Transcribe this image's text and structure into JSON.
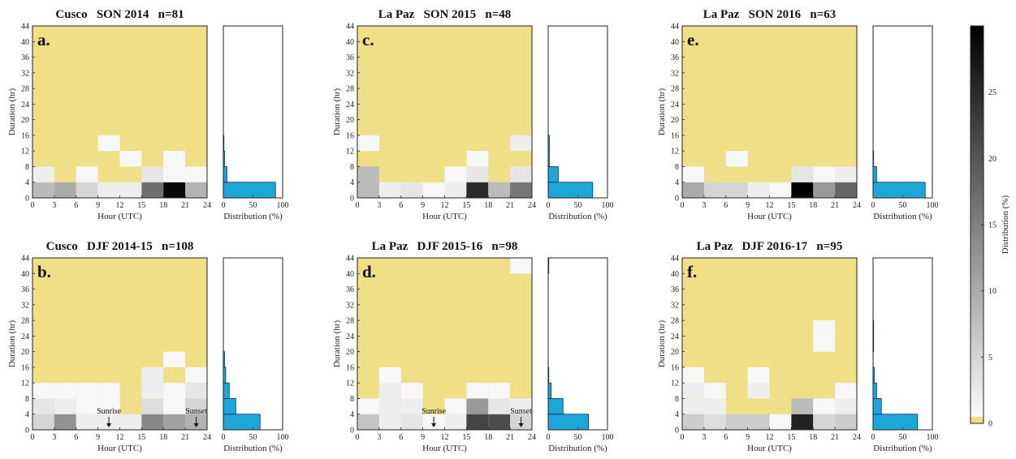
{
  "colorbar": {
    "label": "Distribution (%)",
    "ticks": [
      0,
      5,
      10,
      15,
      20,
      25
    ],
    "range": [
      0,
      30
    ],
    "colors": {
      "zero": "#efe087",
      "low": "#ffffff",
      "high": "#000000"
    }
  },
  "colors": {
    "background_cell": "#efe087",
    "hist_fill": "#1da7d9",
    "hist_stroke": "#0b2e6b"
  },
  "chart_data": [
    {
      "type": "heatmap",
      "panel_id": "a",
      "panel_label": "a.",
      "title": "Cusco   SON 2014   n=81",
      "xlabel": "Hour (UTC)",
      "ylabel": "Duration (hr)",
      "xlim": [
        0,
        24
      ],
      "ylim": [
        0,
        44
      ],
      "xticks": [
        0,
        3,
        6,
        9,
        12,
        15,
        18,
        21,
        24
      ],
      "yticks": [
        0,
        4,
        8,
        12,
        16,
        20,
        24,
        28,
        32,
        36,
        40,
        44
      ],
      "cell_hours": 3,
      "cell_duration": 4,
      "cells": [
        {
          "hour": 0,
          "duration": 0,
          "value": 8
        },
        {
          "hour": 3,
          "duration": 0,
          "value": 10
        },
        {
          "hour": 6,
          "duration": 0,
          "value": 5
        },
        {
          "hour": 9,
          "duration": 0,
          "value": 2
        },
        {
          "hour": 12,
          "duration": 0,
          "value": 2
        },
        {
          "hour": 15,
          "duration": 0,
          "value": 17
        },
        {
          "hour": 18,
          "duration": 0,
          "value": 29
        },
        {
          "hour": 21,
          "duration": 0,
          "value": 9
        },
        {
          "hour": 0,
          "duration": 4,
          "value": 2
        },
        {
          "hour": 6,
          "duration": 4,
          "value": 1
        },
        {
          "hour": 15,
          "duration": 4,
          "value": 3
        },
        {
          "hour": 18,
          "duration": 4,
          "value": 1
        },
        {
          "hour": 21,
          "duration": 4,
          "value": 1
        },
        {
          "hour": 18,
          "duration": 8,
          "value": 1
        },
        {
          "hour": 12,
          "duration": 8,
          "value": 1
        },
        {
          "hour": 9,
          "duration": 12,
          "value": 1
        }
      ],
      "hist": {
        "xlabel": "Distribution (%)",
        "xlim": [
          0,
          100
        ],
        "xticks": [
          0,
          50,
          100
        ],
        "bins": [
          {
            "duration": 0,
            "value": 88
          },
          {
            "duration": 4,
            "value": 6
          },
          {
            "duration": 8,
            "value": 2
          },
          {
            "duration": 12,
            "value": 1
          }
        ]
      },
      "annotations": []
    },
    {
      "type": "heatmap",
      "panel_id": "b",
      "panel_label": "b.",
      "title": "Cusco   DJF 2014-15   n=108",
      "xlabel": "Hour (UTC)",
      "ylabel": "Duration (hr)",
      "xlim": [
        0,
        24
      ],
      "ylim": [
        0,
        44
      ],
      "xticks": [
        0,
        3,
        6,
        9,
        12,
        15,
        18,
        21,
        24
      ],
      "yticks": [
        0,
        4,
        8,
        12,
        16,
        20,
        24,
        28,
        32,
        36,
        40,
        44
      ],
      "cell_hours": 3,
      "cell_duration": 4,
      "cells": [
        {
          "hour": 0,
          "duration": 0,
          "value": 5
        },
        {
          "hour": 3,
          "duration": 0,
          "value": 13
        },
        {
          "hour": 6,
          "duration": 0,
          "value": 2
        },
        {
          "hour": 9,
          "duration": 0,
          "value": 2
        },
        {
          "hour": 12,
          "duration": 0,
          "value": 2
        },
        {
          "hour": 15,
          "duration": 0,
          "value": 14
        },
        {
          "hour": 18,
          "duration": 0,
          "value": 11
        },
        {
          "hour": 21,
          "duration": 0,
          "value": 9
        },
        {
          "hour": 0,
          "duration": 4,
          "value": 3
        },
        {
          "hour": 3,
          "duration": 4,
          "value": 2
        },
        {
          "hour": 6,
          "duration": 4,
          "value": 1
        },
        {
          "hour": 9,
          "duration": 4,
          "value": 1
        },
        {
          "hour": 15,
          "duration": 4,
          "value": 4
        },
        {
          "hour": 18,
          "duration": 4,
          "value": 1
        },
        {
          "hour": 21,
          "duration": 4,
          "value": 5
        },
        {
          "hour": 0,
          "duration": 8,
          "value": 1
        },
        {
          "hour": 3,
          "duration": 8,
          "value": 1
        },
        {
          "hour": 6,
          "duration": 8,
          "value": 1
        },
        {
          "hour": 9,
          "duration": 8,
          "value": 1
        },
        {
          "hour": 15,
          "duration": 8,
          "value": 2
        },
        {
          "hour": 18,
          "duration": 8,
          "value": 1
        },
        {
          "hour": 21,
          "duration": 8,
          "value": 3
        },
        {
          "hour": 15,
          "duration": 12,
          "value": 2
        },
        {
          "hour": 21,
          "duration": 12,
          "value": 1
        },
        {
          "hour": 18,
          "duration": 16,
          "value": 1
        }
      ],
      "hist": {
        "xlabel": "Distribution (%)",
        "xlim": [
          0,
          100
        ],
        "xticks": [
          0,
          50,
          100
        ],
        "bins": [
          {
            "duration": 0,
            "value": 62
          },
          {
            "duration": 4,
            "value": 21
          },
          {
            "duration": 8,
            "value": 10
          },
          {
            "duration": 12,
            "value": 4
          },
          {
            "duration": 16,
            "value": 2
          }
        ]
      },
      "annotations": [
        {
          "text": "Sunrise",
          "hour": 10.5
        },
        {
          "text": "Sunset",
          "hour": 22.5
        }
      ]
    },
    {
      "type": "heatmap",
      "panel_id": "c",
      "panel_label": "c.",
      "title": "La Paz   SON 2015   n=48",
      "xlabel": "Hour (UTC)",
      "ylabel": "Duration (hr)",
      "xlim": [
        0,
        24
      ],
      "ylim": [
        0,
        44
      ],
      "xticks": [
        0,
        3,
        6,
        9,
        12,
        15,
        18,
        21,
        24
      ],
      "yticks": [
        0,
        4,
        8,
        12,
        16,
        20,
        24,
        28,
        32,
        36,
        40,
        44
      ],
      "cell_hours": 3,
      "cell_duration": 4,
      "cells": [
        {
          "hour": 0,
          "duration": 0,
          "value": 8
        },
        {
          "hour": 3,
          "duration": 0,
          "value": 2
        },
        {
          "hour": 6,
          "duration": 0,
          "value": 3
        },
        {
          "hour": 9,
          "duration": 0,
          "value": 1
        },
        {
          "hour": 12,
          "duration": 0,
          "value": 2
        },
        {
          "hour": 15,
          "duration": 0,
          "value": 25
        },
        {
          "hour": 18,
          "duration": 0,
          "value": 8
        },
        {
          "hour": 21,
          "duration": 0,
          "value": 16
        },
        {
          "hour": 0,
          "duration": 4,
          "value": 8
        },
        {
          "hour": 12,
          "duration": 4,
          "value": 1
        },
        {
          "hour": 15,
          "duration": 4,
          "value": 3
        },
        {
          "hour": 21,
          "duration": 4,
          "value": 3
        },
        {
          "hour": 15,
          "duration": 8,
          "value": 1
        },
        {
          "hour": 0,
          "duration": 12,
          "value": 1
        },
        {
          "hour": 21,
          "duration": 12,
          "value": 2
        }
      ],
      "hist": {
        "xlabel": "Distribution (%)",
        "xlim": [
          0,
          100
        ],
        "xticks": [
          0,
          50,
          100
        ],
        "bins": [
          {
            "duration": 0,
            "value": 75
          },
          {
            "duration": 4,
            "value": 17
          },
          {
            "duration": 8,
            "value": 2
          },
          {
            "duration": 12,
            "value": 2
          }
        ]
      },
      "annotations": []
    },
    {
      "type": "heatmap",
      "panel_id": "d",
      "panel_label": "d.",
      "title": "La Paz   DJF 2015-16   n=98",
      "xlabel": "Hour (UTC)",
      "ylabel": "Duration (hr)",
      "xlim": [
        0,
        24
      ],
      "ylim": [
        0,
        44
      ],
      "xticks": [
        0,
        3,
        6,
        9,
        12,
        15,
        18,
        21,
        24
      ],
      "yticks": [
        0,
        4,
        8,
        12,
        16,
        20,
        24,
        28,
        32,
        36,
        40,
        44
      ],
      "cell_hours": 3,
      "cell_duration": 4,
      "cells": [
        {
          "hour": 0,
          "duration": 0,
          "value": 7
        },
        {
          "hour": 3,
          "duration": 0,
          "value": 2
        },
        {
          "hour": 6,
          "duration": 0,
          "value": 3
        },
        {
          "hour": 9,
          "duration": 0,
          "value": 1
        },
        {
          "hour": 12,
          "duration": 0,
          "value": 2
        },
        {
          "hour": 15,
          "duration": 0,
          "value": 22
        },
        {
          "hour": 18,
          "duration": 0,
          "value": 21
        },
        {
          "hour": 21,
          "duration": 0,
          "value": 5
        },
        {
          "hour": 0,
          "duration": 4,
          "value": 1
        },
        {
          "hour": 3,
          "duration": 4,
          "value": 2
        },
        {
          "hour": 6,
          "duration": 4,
          "value": 2
        },
        {
          "hour": 12,
          "duration": 4,
          "value": 1
        },
        {
          "hour": 15,
          "duration": 4,
          "value": 12
        },
        {
          "hour": 18,
          "duration": 4,
          "value": 3
        },
        {
          "hour": 21,
          "duration": 4,
          "value": 2
        },
        {
          "hour": 3,
          "duration": 8,
          "value": 2
        },
        {
          "hour": 6,
          "duration": 8,
          "value": 1
        },
        {
          "hour": 15,
          "duration": 8,
          "value": 1
        },
        {
          "hour": 18,
          "duration": 8,
          "value": 1
        },
        {
          "hour": 3,
          "duration": 12,
          "value": 1
        },
        {
          "hour": 21,
          "duration": 40,
          "value": 1
        }
      ],
      "hist": {
        "xlabel": "Distribution (%)",
        "xlim": [
          0,
          100
        ],
        "xticks": [
          0,
          50,
          100
        ],
        "bins": [
          {
            "duration": 0,
            "value": 68
          },
          {
            "duration": 4,
            "value": 25
          },
          {
            "duration": 8,
            "value": 5
          },
          {
            "duration": 12,
            "value": 1
          },
          {
            "duration": 40,
            "value": 1
          }
        ]
      },
      "annotations": [
        {
          "text": "Sunrise",
          "hour": 10.5
        },
        {
          "text": "Sunset",
          "hour": 22.5
        }
      ]
    },
    {
      "type": "heatmap",
      "panel_id": "e",
      "panel_label": "e.",
      "title": "La Paz   SON 2016   n=63",
      "xlabel": "Hour (UTC)",
      "ylabel": "Duration (hr)",
      "xlim": [
        0,
        24
      ],
      "ylim": [
        0,
        44
      ],
      "xticks": [
        0,
        3,
        6,
        9,
        12,
        15,
        18,
        21,
        24
      ],
      "yticks": [
        0,
        4,
        8,
        12,
        16,
        20,
        24,
        28,
        32,
        36,
        40,
        44
      ],
      "cell_hours": 3,
      "cell_duration": 4,
      "cells": [
        {
          "hour": 0,
          "duration": 0,
          "value": 10
        },
        {
          "hour": 3,
          "duration": 0,
          "value": 5
        },
        {
          "hour": 6,
          "duration": 0,
          "value": 5
        },
        {
          "hour": 9,
          "duration": 0,
          "value": 2
        },
        {
          "hour": 12,
          "duration": 0,
          "value": 1
        },
        {
          "hour": 15,
          "duration": 0,
          "value": 30
        },
        {
          "hour": 18,
          "duration": 0,
          "value": 12
        },
        {
          "hour": 21,
          "duration": 0,
          "value": 18
        },
        {
          "hour": 0,
          "duration": 4,
          "value": 1
        },
        {
          "hour": 15,
          "duration": 4,
          "value": 3
        },
        {
          "hour": 18,
          "duration": 4,
          "value": 1
        },
        {
          "hour": 21,
          "duration": 4,
          "value": 2
        },
        {
          "hour": 6,
          "duration": 8,
          "value": 1
        }
      ],
      "hist": {
        "xlabel": "Distribution (%)",
        "xlim": [
          0,
          100
        ],
        "xticks": [
          0,
          50,
          100
        ],
        "bins": [
          {
            "duration": 0,
            "value": 88
          },
          {
            "duration": 4,
            "value": 6
          },
          {
            "duration": 8,
            "value": 1
          }
        ]
      },
      "annotations": []
    },
    {
      "type": "heatmap",
      "panel_id": "f",
      "panel_label": "f.",
      "title": "La Paz   DJF 2016-17   n=95",
      "xlabel": "Hour (UTC)",
      "ylabel": "Duration (hr)",
      "xlim": [
        0,
        24
      ],
      "ylim": [
        0,
        44
      ],
      "xticks": [
        0,
        3,
        6,
        9,
        12,
        15,
        18,
        21,
        24
      ],
      "yticks": [
        0,
        4,
        8,
        12,
        16,
        20,
        24,
        28,
        32,
        36,
        40,
        44
      ],
      "cell_hours": 3,
      "cell_duration": 4,
      "cells": [
        {
          "hour": 0,
          "duration": 0,
          "value": 6
        },
        {
          "hour": 3,
          "duration": 0,
          "value": 4
        },
        {
          "hour": 6,
          "duration": 0,
          "value": 6
        },
        {
          "hour": 9,
          "duration": 0,
          "value": 6
        },
        {
          "hour": 12,
          "duration": 0,
          "value": 1
        },
        {
          "hour": 15,
          "duration": 0,
          "value": 26
        },
        {
          "hour": 18,
          "duration": 0,
          "value": 5
        },
        {
          "hour": 21,
          "duration": 0,
          "value": 6
        },
        {
          "hour": 0,
          "duration": 4,
          "value": 2
        },
        {
          "hour": 3,
          "duration": 4,
          "value": 2
        },
        {
          "hour": 15,
          "duration": 4,
          "value": 8
        },
        {
          "hour": 18,
          "duration": 4,
          "value": 1
        },
        {
          "hour": 21,
          "duration": 4,
          "value": 2
        },
        {
          "hour": 0,
          "duration": 8,
          "value": 2
        },
        {
          "hour": 3,
          "duration": 8,
          "value": 1
        },
        {
          "hour": 9,
          "duration": 8,
          "value": 2
        },
        {
          "hour": 21,
          "duration": 8,
          "value": 1
        },
        {
          "hour": 0,
          "duration": 12,
          "value": 1
        },
        {
          "hour": 9,
          "duration": 12,
          "value": 1
        },
        {
          "hour": 18,
          "duration": 20,
          "value": 1
        },
        {
          "hour": 18,
          "duration": 24,
          "value": 1
        }
      ],
      "hist": {
        "xlabel": "Distribution (%)",
        "xlim": [
          0,
          100
        ],
        "xticks": [
          0,
          50,
          100
        ],
        "bins": [
          {
            "duration": 0,
            "value": 75
          },
          {
            "duration": 4,
            "value": 14
          },
          {
            "duration": 8,
            "value": 6
          },
          {
            "duration": 12,
            "value": 2
          },
          {
            "duration": 20,
            "value": 1
          },
          {
            "duration": 24,
            "value": 1
          }
        ]
      },
      "annotations": []
    }
  ]
}
